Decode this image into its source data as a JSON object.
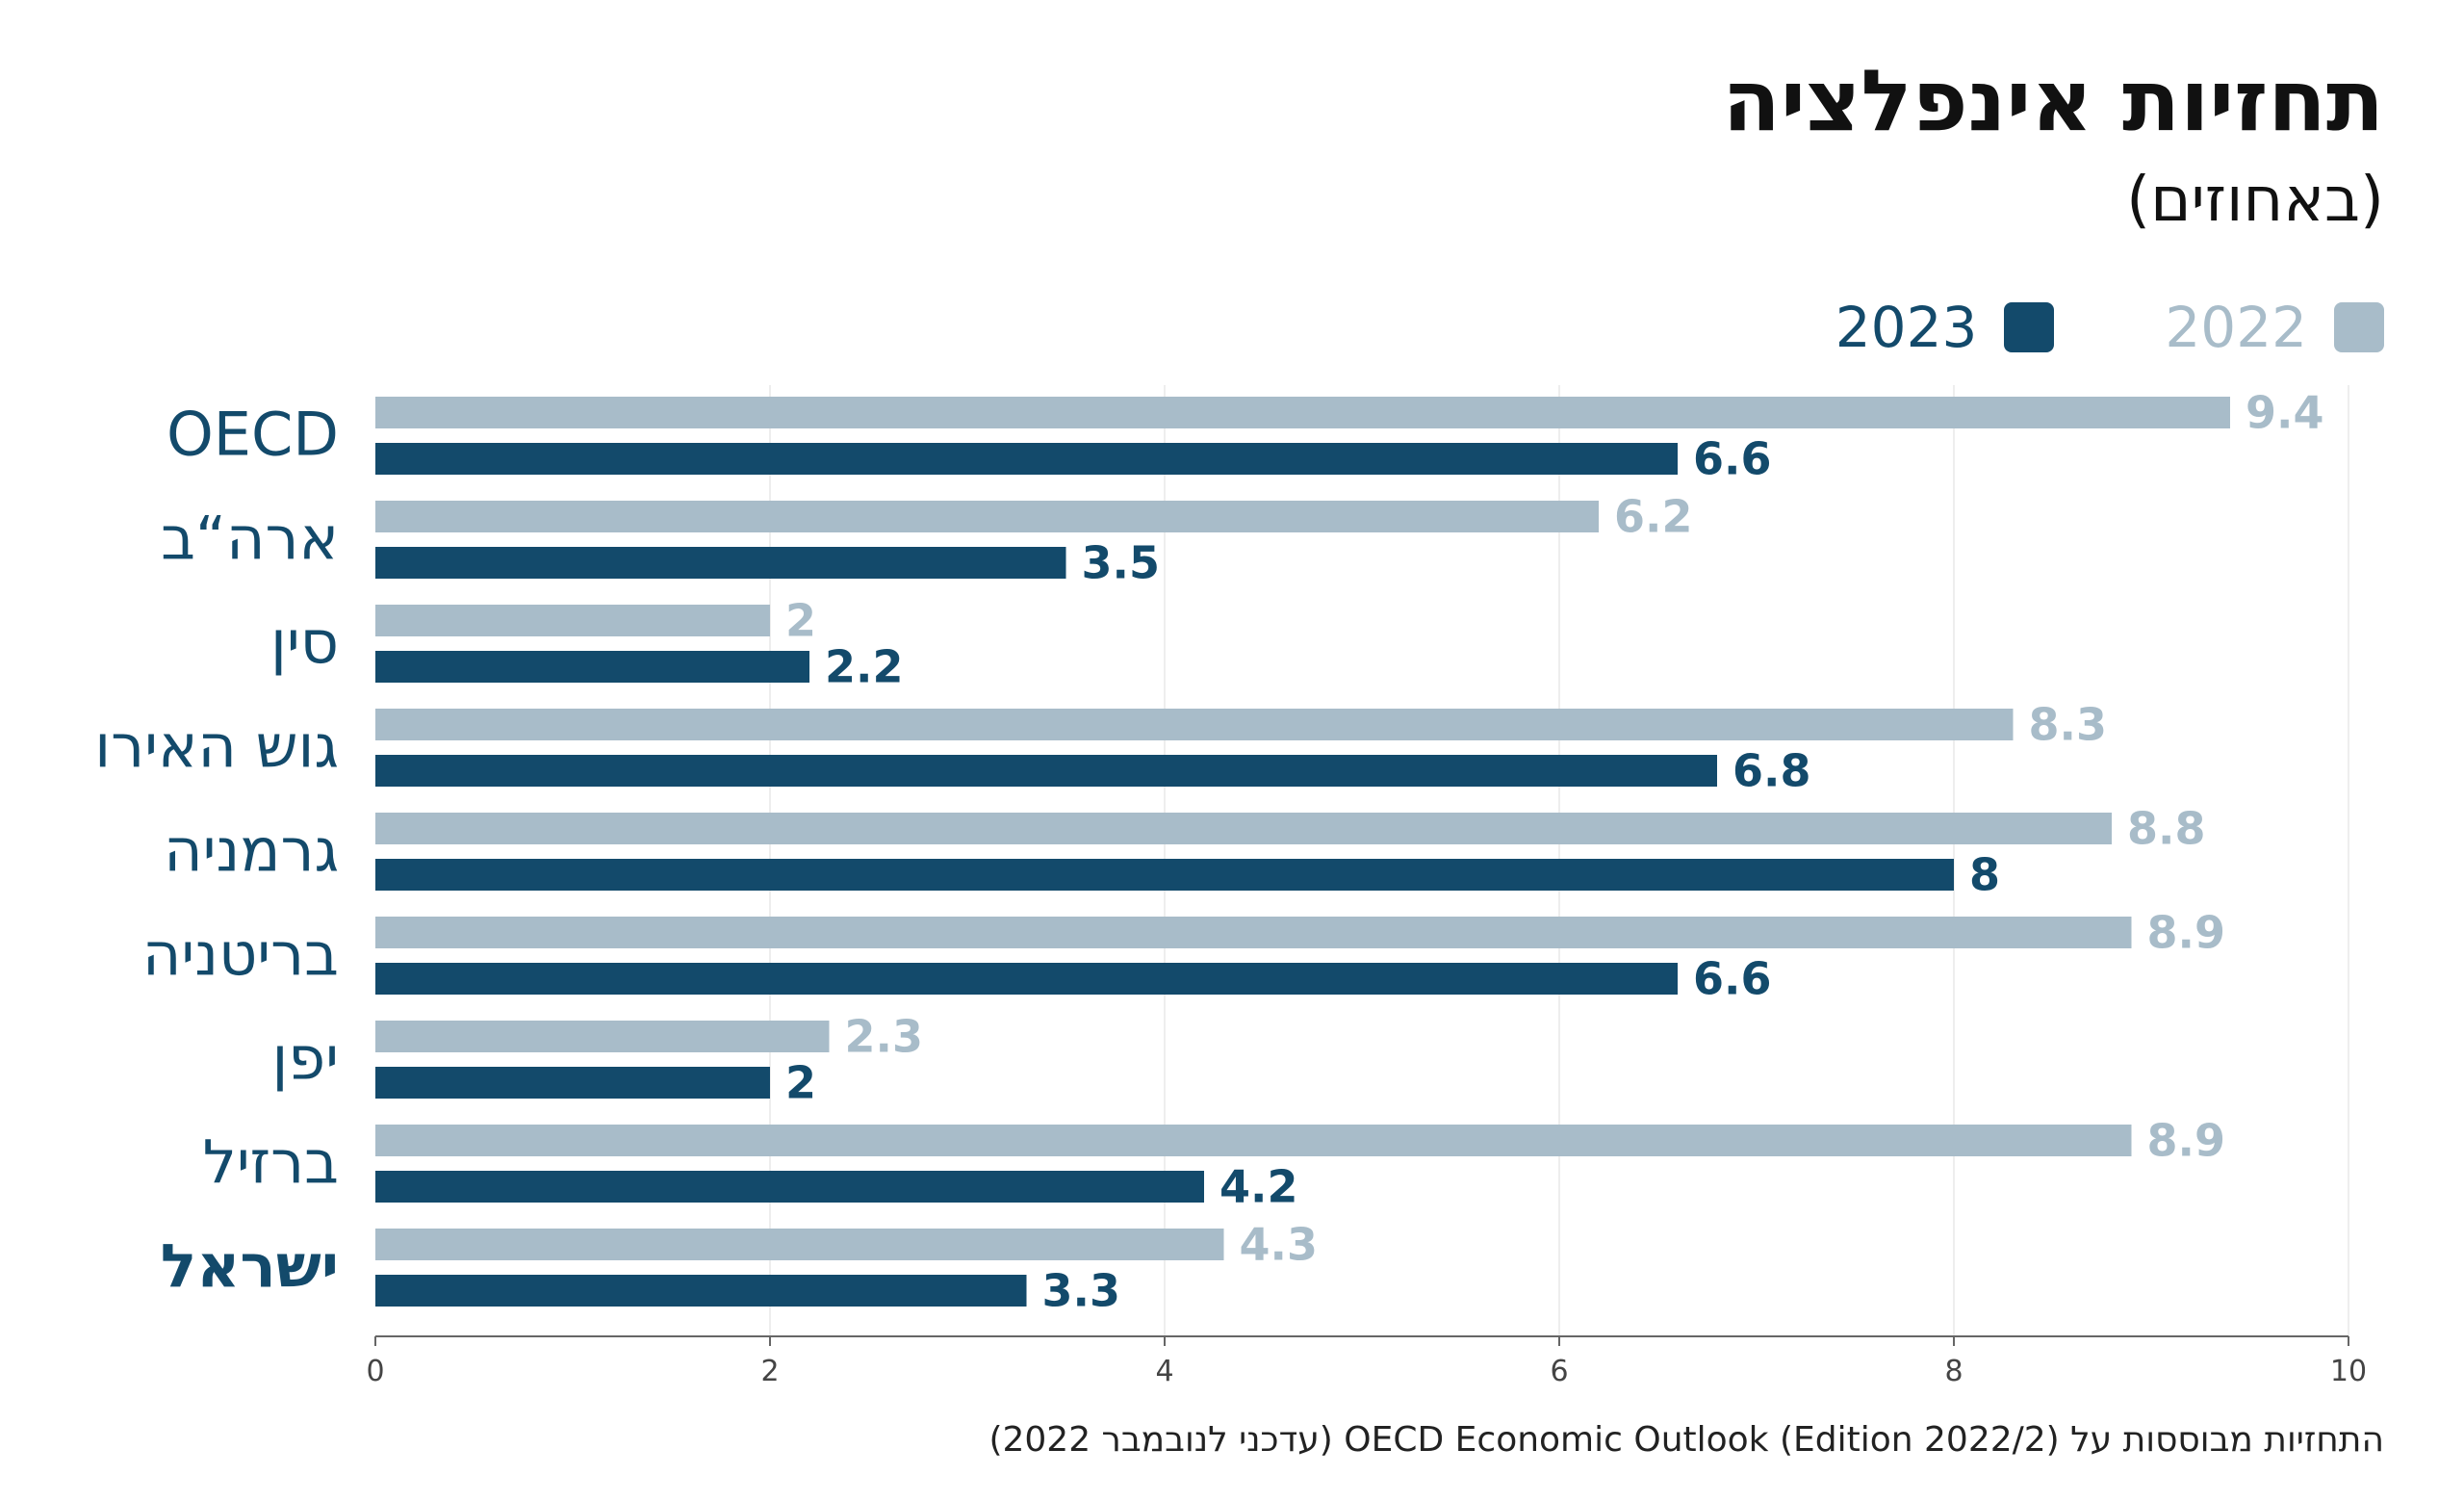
{
  "chart_data": {
    "type": "bar",
    "orientation": "horizontal",
    "title": "תחזיות אינפלציה",
    "subtitle": "(באחוזים)",
    "categories": [
      "OECD",
      "ארה“ב",
      "סין",
      "גוש האירו",
      "גרמניה",
      "בריטניה",
      "יפן",
      "ברזיל",
      "ישראל"
    ],
    "highlight_category": "ישראל",
    "series": [
      {
        "name": "2022",
        "color": "#a8bcc9",
        "values": [
          9.4,
          6.2,
          2,
          8.3,
          8.8,
          8.9,
          2.3,
          8.9,
          4.3
        ]
      },
      {
        "name": "2023",
        "color": "#134a6b",
        "values": [
          6.6,
          3.5,
          2.2,
          6.8,
          8,
          6.6,
          2,
          4.2,
          3.3
        ]
      }
    ],
    "xlim": [
      0,
      10
    ],
    "xticks": [
      0,
      2,
      4,
      6,
      8,
      10
    ],
    "grid": true,
    "legend_position": "top-right",
    "footnote": "התחזיות מבוססות על OECD Economic Outlook (Edition 2022/2) (עדכני לנובמבר 2022)",
    "category_color": "#134a6b"
  }
}
